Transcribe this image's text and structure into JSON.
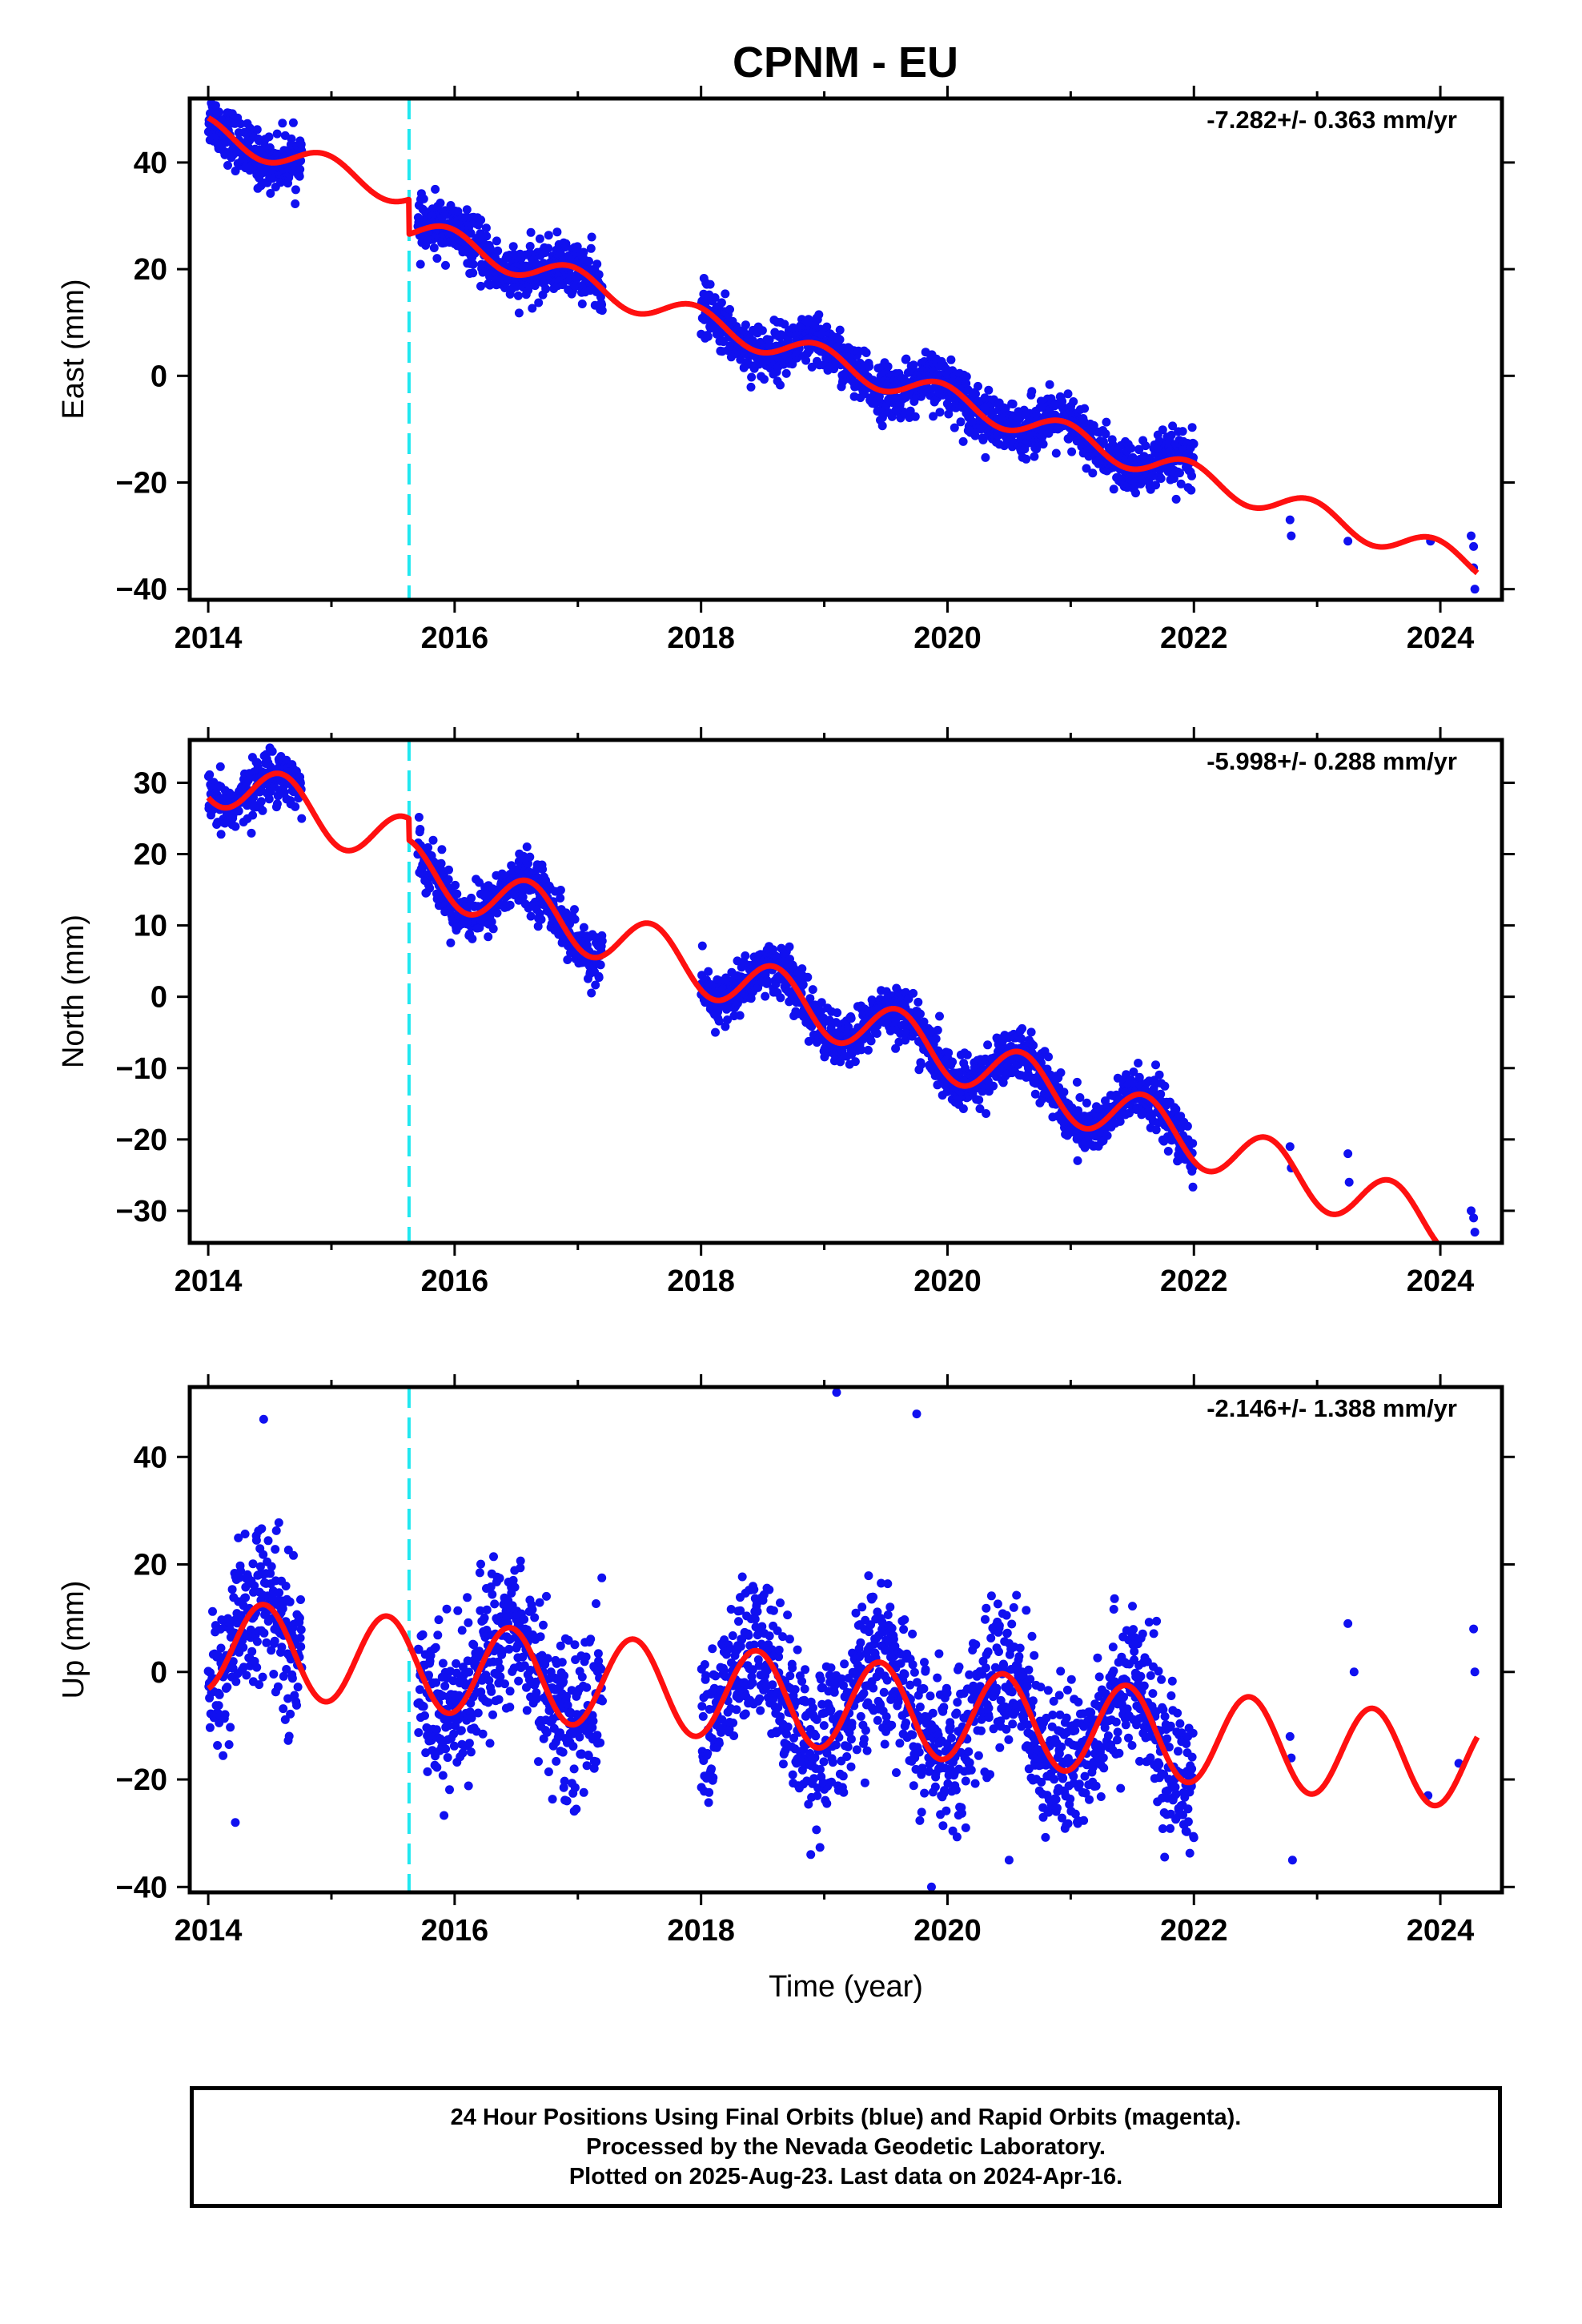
{
  "title": "CPNM - EU",
  "colors": {
    "points": "#1010f0",
    "fit": "#ff1010",
    "offset": "#20e8f0",
    "frame": "#000000"
  },
  "chart_data": [
    {
      "type": "scatter",
      "ylabel": "East (mm)",
      "rate": "-7.282+/- 0.363 mm/yr",
      "xlim": [
        2013.85,
        2024.5
      ],
      "ylim": [
        -42,
        52
      ],
      "xticks": [
        2014,
        2016,
        2018,
        2020,
        2022,
        2024
      ],
      "xticklabels": [
        "2014",
        "2016",
        "2018",
        "2020",
        "2022",
        "2024"
      ],
      "yticks": [
        -40,
        -20,
        0,
        20,
        40
      ],
      "yticklabels": [
        "−40",
        "−20",
        "0",
        "20",
        "40"
      ],
      "offset_epoch": 2015.63,
      "data_spans": [
        [
          2014.0,
          2014.76
        ],
        [
          2015.7,
          2017.2
        ],
        [
          2018.0,
          2022.0
        ]
      ],
      "sparse_points": [
        [
          2022.78,
          -27
        ],
        [
          2022.79,
          -30
        ],
        [
          2023.25,
          -31
        ],
        [
          2023.92,
          -31
        ],
        [
          2024.25,
          -30
        ],
        [
          2024.27,
          -32
        ],
        [
          2024.27,
          -36
        ],
        [
          2024.28,
          -40
        ]
      ],
      "fit": {
        "intercept": 46,
        "rate": -7.282,
        "annual_amp": 2.5,
        "annual_peak": 2014.95,
        "offset": -6.5,
        "offset_epoch": 2015.63,
        "scatter": 2.5
      },
      "legend_position": "top-right"
    },
    {
      "type": "scatter",
      "ylabel": "North (mm)",
      "rate": "-5.998+/- 0.288 mm/yr",
      "xlim": [
        2013.85,
        2024.5
      ],
      "ylim": [
        -34.5,
        36
      ],
      "xticks": [
        2014,
        2016,
        2018,
        2020,
        2022,
        2024
      ],
      "xticklabels": [
        "2014",
        "2016",
        "2018",
        "2020",
        "2022",
        "2024"
      ],
      "yticks": [
        -30,
        -20,
        -10,
        0,
        10,
        20,
        30
      ],
      "yticklabels": [
        "−30",
        "−20",
        "−10",
        "0",
        "10",
        "20",
        "30"
      ],
      "offset_epoch": 2015.63,
      "data_spans": [
        [
          2014.0,
          2014.76
        ],
        [
          2015.7,
          2017.2
        ],
        [
          2018.0,
          2022.0
        ]
      ],
      "sparse_points": [
        [
          2022.78,
          -21
        ],
        [
          2022.79,
          -24
        ],
        [
          2023.25,
          -22
        ],
        [
          2023.26,
          -26
        ],
        [
          2024.25,
          -30
        ],
        [
          2024.27,
          -31
        ],
        [
          2024.28,
          -33
        ]
      ],
      "fit": {
        "intercept": 31,
        "rate": -5.998,
        "annual_amp": 3.8,
        "annual_peak": 2014.6,
        "offset": -3.0,
        "offset_epoch": 2015.63,
        "scatter": 1.8
      },
      "legend_position": "top-right"
    },
    {
      "type": "scatter",
      "xlabel": "Time (year)",
      "ylabel": "Up (mm)",
      "rate": "-2.146+/- 1.388 mm/yr",
      "xlim": [
        2013.85,
        2024.5
      ],
      "ylim": [
        -41,
        53
      ],
      "xticks": [
        2014,
        2016,
        2018,
        2020,
        2022,
        2024
      ],
      "xticklabels": [
        "2014",
        "2016",
        "2018",
        "2020",
        "2022",
        "2024"
      ],
      "yticks": [
        -40,
        -20,
        0,
        20,
        40
      ],
      "yticklabels": [
        "−40",
        "−20",
        "0",
        "20",
        "40"
      ],
      "offset_epoch": 2015.63,
      "data_spans": [
        [
          2014.0,
          2014.76
        ],
        [
          2015.7,
          2017.2
        ],
        [
          2018.0,
          2022.0
        ]
      ],
      "sparse_points": [
        [
          2014.45,
          47
        ],
        [
          2014.22,
          -28
        ],
        [
          2019.1,
          52
        ],
        [
          2019.75,
          48
        ],
        [
          2019.87,
          -40
        ],
        [
          2020.5,
          -35
        ],
        [
          2022.78,
          -12
        ],
        [
          2022.79,
          -16
        ],
        [
          2022.8,
          -35
        ],
        [
          2023.25,
          9
        ],
        [
          2023.3,
          0
        ],
        [
          2023.9,
          -23
        ],
        [
          2024.15,
          -17
        ],
        [
          2024.27,
          8
        ],
        [
          2024.28,
          0
        ]
      ],
      "fit": {
        "intercept": 5,
        "rate": -2.146,
        "annual_amp": 8.5,
        "annual_peak": 2014.45,
        "offset": 0,
        "offset_epoch": 2015.63,
        "scatter": 7.0
      },
      "legend_position": "top-right"
    }
  ],
  "footer": {
    "line1": "24 Hour Positions Using Final Orbits (blue) and Rapid Orbits (magenta).",
    "line2": "Processed by the Nevada Geodetic Laboratory.",
    "line3": "Plotted on 2025-Aug-23. Last data on 2024-Apr-16."
  }
}
